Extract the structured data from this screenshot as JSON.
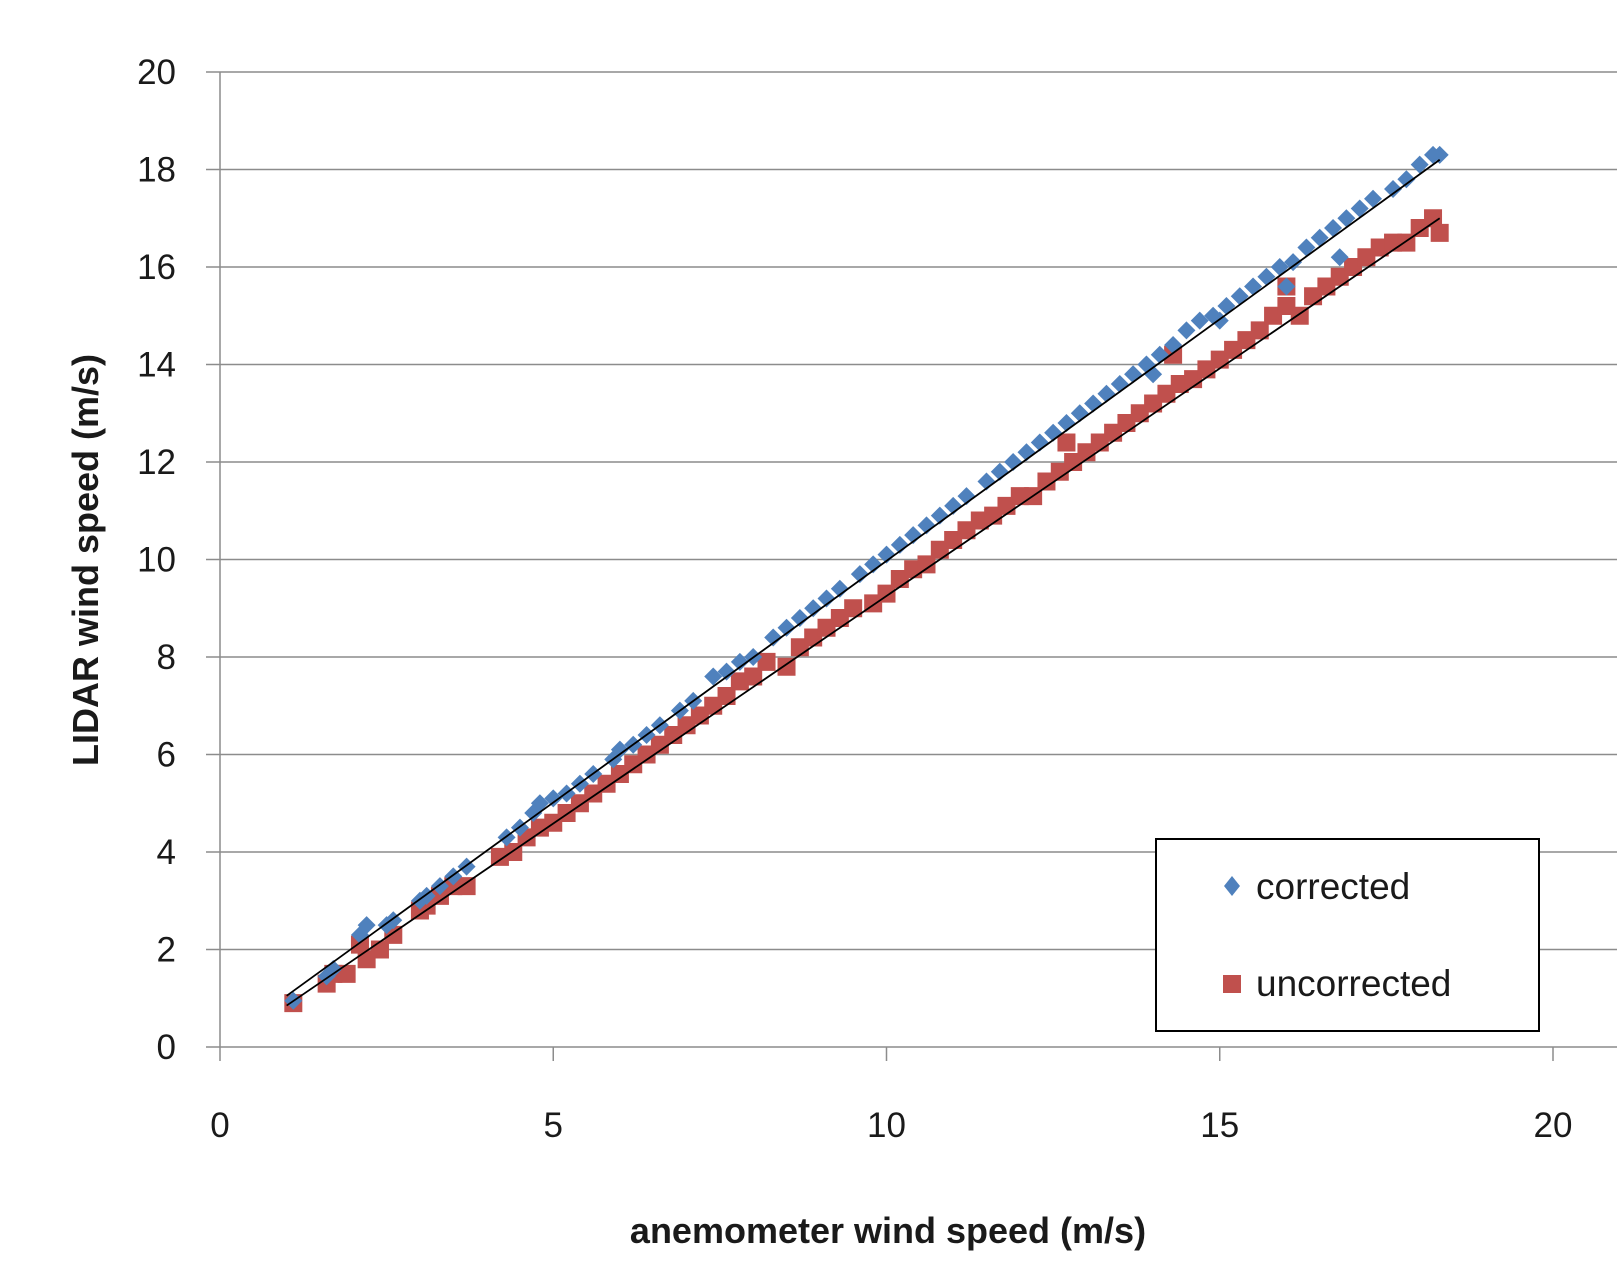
{
  "chart_data": {
    "type": "scatter",
    "title": "",
    "xlabel": "anemometer wind speed (m/s)",
    "ylabel": "LIDAR wind speed (m/s)",
    "xlim": [
      0,
      20
    ],
    "ylim": [
      0,
      20
    ],
    "x_ticks": [
      "0",
      "5",
      "10",
      "15",
      "20"
    ],
    "y_ticks": [
      "0",
      "2",
      "4",
      "6",
      "8",
      "10",
      "12",
      "14",
      "16",
      "18",
      "20"
    ],
    "grid": "horizontal",
    "legend_position": "bottom-right",
    "series": [
      {
        "name": "corrected",
        "marker": "diamond",
        "color": "#4f81bd",
        "points": [
          [
            1.1,
            0.95
          ],
          [
            1.6,
            1.45
          ],
          [
            1.7,
            1.6
          ],
          [
            2.1,
            2.3
          ],
          [
            2.2,
            2.5
          ],
          [
            2.5,
            2.5
          ],
          [
            2.6,
            2.6
          ],
          [
            3.0,
            3.0
          ],
          [
            3.1,
            3.1
          ],
          [
            3.3,
            3.3
          ],
          [
            3.5,
            3.5
          ],
          [
            3.7,
            3.7
          ],
          [
            4.3,
            4.3
          ],
          [
            4.5,
            4.5
          ],
          [
            4.7,
            4.8
          ],
          [
            4.8,
            5.0
          ],
          [
            5.0,
            5.1
          ],
          [
            5.2,
            5.2
          ],
          [
            5.4,
            5.4
          ],
          [
            5.6,
            5.6
          ],
          [
            5.9,
            5.9
          ],
          [
            6.0,
            6.1
          ],
          [
            6.2,
            6.2
          ],
          [
            6.4,
            6.4
          ],
          [
            6.6,
            6.6
          ],
          [
            6.9,
            6.9
          ],
          [
            7.1,
            7.1
          ],
          [
            7.4,
            7.6
          ],
          [
            7.6,
            7.7
          ],
          [
            7.8,
            7.9
          ],
          [
            8.0,
            8.0
          ],
          [
            8.3,
            8.4
          ],
          [
            8.5,
            8.6
          ],
          [
            8.7,
            8.8
          ],
          [
            8.9,
            9.0
          ],
          [
            9.1,
            9.2
          ],
          [
            9.3,
            9.4
          ],
          [
            9.6,
            9.7
          ],
          [
            9.8,
            9.9
          ],
          [
            10.0,
            10.1
          ],
          [
            10.2,
            10.3
          ],
          [
            10.4,
            10.5
          ],
          [
            10.6,
            10.7
          ],
          [
            10.8,
            10.9
          ],
          [
            11.0,
            11.1
          ],
          [
            11.2,
            11.3
          ],
          [
            11.5,
            11.6
          ],
          [
            11.7,
            11.8
          ],
          [
            11.9,
            12.0
          ],
          [
            12.1,
            12.2
          ],
          [
            12.3,
            12.4
          ],
          [
            12.5,
            12.6
          ],
          [
            12.7,
            12.8
          ],
          [
            12.9,
            13.0
          ],
          [
            13.1,
            13.2
          ],
          [
            13.3,
            13.4
          ],
          [
            13.5,
            13.6
          ],
          [
            13.7,
            13.8
          ],
          [
            13.9,
            14.0
          ],
          [
            14.1,
            14.2
          ],
          [
            14.3,
            14.4
          ],
          [
            14.5,
            14.7
          ],
          [
            14.7,
            14.9
          ],
          [
            14.9,
            15.0
          ],
          [
            15.1,
            15.2
          ],
          [
            15.3,
            15.4
          ],
          [
            15.5,
            15.6
          ],
          [
            15.7,
            15.8
          ],
          [
            15.9,
            16.0
          ],
          [
            16.1,
            16.1
          ],
          [
            16.3,
            16.4
          ],
          [
            16.5,
            16.6
          ],
          [
            16.7,
            16.8
          ],
          [
            16.9,
            17.0
          ],
          [
            17.1,
            17.2
          ],
          [
            17.3,
            17.4
          ],
          [
            17.6,
            17.6
          ],
          [
            17.8,
            17.8
          ],
          [
            18.0,
            18.1
          ],
          [
            18.2,
            18.3
          ],
          [
            18.3,
            18.3
          ],
          [
            15.0,
            14.9
          ],
          [
            16.0,
            15.6
          ],
          [
            16.8,
            16.2
          ],
          [
            14.0,
            13.8
          ]
        ]
      },
      {
        "name": "uncorrected",
        "marker": "square",
        "color": "#c0504d",
        "points": [
          [
            1.1,
            0.9
          ],
          [
            1.6,
            1.3
          ],
          [
            1.7,
            1.5
          ],
          [
            1.9,
            1.5
          ],
          [
            2.1,
            2.1
          ],
          [
            2.2,
            1.8
          ],
          [
            2.4,
            2.0
          ],
          [
            2.6,
            2.3
          ],
          [
            3.0,
            2.8
          ],
          [
            3.1,
            2.9
          ],
          [
            3.3,
            3.1
          ],
          [
            3.5,
            3.3
          ],
          [
            3.7,
            3.3
          ],
          [
            4.2,
            3.9
          ],
          [
            4.4,
            4.0
          ],
          [
            4.6,
            4.3
          ],
          [
            4.8,
            4.5
          ],
          [
            5.0,
            4.6
          ],
          [
            5.2,
            4.8
          ],
          [
            5.4,
            5.0
          ],
          [
            5.6,
            5.2
          ],
          [
            5.8,
            5.4
          ],
          [
            6.0,
            5.6
          ],
          [
            6.2,
            5.8
          ],
          [
            6.4,
            6.0
          ],
          [
            6.6,
            6.2
          ],
          [
            6.8,
            6.4
          ],
          [
            7.0,
            6.6
          ],
          [
            7.2,
            6.8
          ],
          [
            7.4,
            7.0
          ],
          [
            7.6,
            7.2
          ],
          [
            7.8,
            7.5
          ],
          [
            8.0,
            7.6
          ],
          [
            8.2,
            7.9
          ],
          [
            8.5,
            7.8
          ],
          [
            8.7,
            8.2
          ],
          [
            8.9,
            8.4
          ],
          [
            9.1,
            8.6
          ],
          [
            9.3,
            8.8
          ],
          [
            9.5,
            9.0
          ],
          [
            9.8,
            9.1
          ],
          [
            10.0,
            9.3
          ],
          [
            10.2,
            9.6
          ],
          [
            10.4,
            9.8
          ],
          [
            10.6,
            9.9
          ],
          [
            10.8,
            10.2
          ],
          [
            11.0,
            10.4
          ],
          [
            11.2,
            10.6
          ],
          [
            11.4,
            10.8
          ],
          [
            11.6,
            10.9
          ],
          [
            11.8,
            11.1
          ],
          [
            12.0,
            11.3
          ],
          [
            12.2,
            11.3
          ],
          [
            12.4,
            11.6
          ],
          [
            12.6,
            11.8
          ],
          [
            12.8,
            12.0
          ],
          [
            13.0,
            12.2
          ],
          [
            13.2,
            12.4
          ],
          [
            13.4,
            12.6
          ],
          [
            13.6,
            12.8
          ],
          [
            13.8,
            13.0
          ],
          [
            14.0,
            13.2
          ],
          [
            14.2,
            13.4
          ],
          [
            14.4,
            13.6
          ],
          [
            14.6,
            13.7
          ],
          [
            14.8,
            13.9
          ],
          [
            15.0,
            14.1
          ],
          [
            15.2,
            14.3
          ],
          [
            15.4,
            14.5
          ],
          [
            15.6,
            14.7
          ],
          [
            15.8,
            15.0
          ],
          [
            16.0,
            15.2
          ],
          [
            16.2,
            15.0
          ],
          [
            16.4,
            15.4
          ],
          [
            16.6,
            15.6
          ],
          [
            16.8,
            15.8
          ],
          [
            17.0,
            16.0
          ],
          [
            17.2,
            16.2
          ],
          [
            17.4,
            16.4
          ],
          [
            17.6,
            16.5
          ],
          [
            17.8,
            16.5
          ],
          [
            18.0,
            16.8
          ],
          [
            18.2,
            17.0
          ],
          [
            18.3,
            16.7
          ],
          [
            14.3,
            14.2
          ],
          [
            12.7,
            12.4
          ],
          [
            16.0,
            15.6
          ]
        ]
      }
    ],
    "trendlines": [
      {
        "series": "corrected",
        "from": [
          1.0,
          1.05
        ],
        "to": [
          18.3,
          18.2
        ],
        "color": "#000000"
      },
      {
        "series": "uncorrected",
        "from": [
          1.0,
          0.85
        ],
        "to": [
          18.3,
          17.0
        ],
        "color": "#000000"
      }
    ]
  }
}
